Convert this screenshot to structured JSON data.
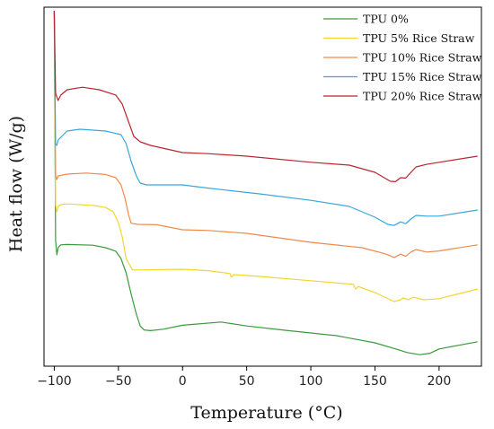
{
  "chart_data": {
    "type": "line",
    "title": "",
    "xlabel": "Temperature (°C)",
    "ylabel": "Heat flow (W/g)",
    "xlim": [
      -108,
      233
    ],
    "ylim": [
      0,
      1
    ],
    "y_ticks_shown": false,
    "grid": false,
    "legend_position": "top-right",
    "x_ticks": [
      {
        "value": -100,
        "label": "−100"
      },
      {
        "value": -50,
        "label": "−50"
      },
      {
        "value": 0,
        "label": "0"
      },
      {
        "value": 50,
        "label": "50"
      },
      {
        "value": 100,
        "label": "100"
      },
      {
        "value": 150,
        "label": "150"
      },
      {
        "value": 200,
        "label": "200"
      }
    ],
    "series": [
      {
        "name": "TPU 0%",
        "color": "#3b9a3b",
        "points": [
          [
            -100,
            0.99
          ],
          [
            -99,
            0.35
          ],
          [
            -98,
            0.31
          ],
          [
            -97,
            0.33
          ],
          [
            -95,
            0.338
          ],
          [
            -90,
            0.339
          ],
          [
            -70,
            0.337
          ],
          [
            -60,
            0.33
          ],
          [
            -52,
            0.32
          ],
          [
            -48,
            0.3
          ],
          [
            -44,
            0.26
          ],
          [
            -40,
            0.2
          ],
          [
            -36,
            0.145
          ],
          [
            -33,
            0.112
          ],
          [
            -30,
            0.101
          ],
          [
            -25,
            0.099
          ],
          [
            -15,
            0.103
          ],
          [
            0,
            0.114
          ],
          [
            30,
            0.123
          ],
          [
            50,
            0.112
          ],
          [
            80,
            0.1
          ],
          [
            120,
            0.085
          ],
          [
            150,
            0.065
          ],
          [
            168,
            0.046
          ],
          [
            175,
            0.038
          ],
          [
            185,
            0.032
          ],
          [
            193,
            0.036
          ],
          [
            200,
            0.048
          ],
          [
            215,
            0.058
          ],
          [
            230,
            0.068
          ]
        ]
      },
      {
        "name": "TPU 5% Rice Straw",
        "color": "#f2d630",
        "points": [
          [
            -100,
            0.99
          ],
          [
            -99,
            0.45
          ],
          [
            -98,
            0.43
          ],
          [
            -97,
            0.445
          ],
          [
            -95,
            0.45
          ],
          [
            -90,
            0.452
          ],
          [
            -70,
            0.448
          ],
          [
            -60,
            0.442
          ],
          [
            -54,
            0.43
          ],
          [
            -50,
            0.4
          ],
          [
            -47,
            0.36
          ],
          [
            -44,
            0.3
          ],
          [
            -41,
            0.28
          ],
          [
            -39,
            0.268
          ],
          [
            -35,
            0.268
          ],
          [
            0,
            0.27
          ],
          [
            20,
            0.266
          ],
          [
            37,
            0.258
          ],
          [
            38,
            0.248
          ],
          [
            40,
            0.255
          ],
          [
            60,
            0.25
          ],
          [
            100,
            0.238
          ],
          [
            133,
            0.228
          ],
          [
            135,
            0.215
          ],
          [
            137,
            0.222
          ],
          [
            150,
            0.205
          ],
          [
            165,
            0.18
          ],
          [
            170,
            0.185
          ],
          [
            172,
            0.19
          ],
          [
            176,
            0.185
          ],
          [
            180,
            0.192
          ],
          [
            188,
            0.185
          ],
          [
            200,
            0.188
          ],
          [
            230,
            0.215
          ]
        ]
      },
      {
        "name": "TPU 10% Rice Straw",
        "color": "#f0894a",
        "points": [
          [
            -100,
            0.99
          ],
          [
            -99,
            0.53
          ],
          [
            -98,
            0.52
          ],
          [
            -97,
            0.53
          ],
          [
            -90,
            0.535
          ],
          [
            -75,
            0.538
          ],
          [
            -60,
            0.534
          ],
          [
            -52,
            0.525
          ],
          [
            -48,
            0.505
          ],
          [
            -45,
            0.47
          ],
          [
            -42,
            0.42
          ],
          [
            -40,
            0.398
          ],
          [
            -35,
            0.395
          ],
          [
            -20,
            0.394
          ],
          [
            0,
            0.38
          ],
          [
            20,
            0.378
          ],
          [
            50,
            0.37
          ],
          [
            100,
            0.345
          ],
          [
            140,
            0.33
          ],
          [
            158,
            0.313
          ],
          [
            165,
            0.303
          ],
          [
            170,
            0.312
          ],
          [
            174,
            0.306
          ],
          [
            178,
            0.318
          ],
          [
            182,
            0.325
          ],
          [
            190,
            0.318
          ],
          [
            200,
            0.321
          ],
          [
            230,
            0.338
          ]
        ]
      },
      {
        "name": "TPU 15% Rice Straw",
        "color": "#3aa6db",
        "points": [
          [
            -100,
            0.99
          ],
          [
            -99,
            0.62
          ],
          [
            -98,
            0.615
          ],
          [
            -97,
            0.63
          ],
          [
            -90,
            0.655
          ],
          [
            -80,
            0.66
          ],
          [
            -60,
            0.655
          ],
          [
            -48,
            0.645
          ],
          [
            -44,
            0.62
          ],
          [
            -40,
            0.57
          ],
          [
            -36,
            0.53
          ],
          [
            -33,
            0.51
          ],
          [
            -28,
            0.505
          ],
          [
            -20,
            0.505
          ],
          [
            0,
            0.505
          ],
          [
            20,
            0.496
          ],
          [
            60,
            0.48
          ],
          [
            100,
            0.462
          ],
          [
            130,
            0.445
          ],
          [
            150,
            0.415
          ],
          [
            160,
            0.395
          ],
          [
            165,
            0.392
          ],
          [
            170,
            0.402
          ],
          [
            174,
            0.397
          ],
          [
            178,
            0.41
          ],
          [
            182,
            0.42
          ],
          [
            190,
            0.418
          ],
          [
            200,
            0.418
          ],
          [
            230,
            0.435
          ]
        ]
      },
      {
        "name": "TPU 20% Rice Straw",
        "color": "#b9262f",
        "points": [
          [
            -100,
            0.99
          ],
          [
            -99,
            0.76
          ],
          [
            -97,
            0.74
          ],
          [
            -95,
            0.755
          ],
          [
            -90,
            0.77
          ],
          [
            -78,
            0.777
          ],
          [
            -65,
            0.77
          ],
          [
            -52,
            0.755
          ],
          [
            -47,
            0.73
          ],
          [
            -43,
            0.69
          ],
          [
            -38,
            0.64
          ],
          [
            -33,
            0.625
          ],
          [
            -25,
            0.615
          ],
          [
            0,
            0.595
          ],
          [
            20,
            0.592
          ],
          [
            50,
            0.585
          ],
          [
            100,
            0.568
          ],
          [
            130,
            0.56
          ],
          [
            150,
            0.54
          ],
          [
            162,
            0.515
          ],
          [
            166,
            0.514
          ],
          [
            170,
            0.525
          ],
          [
            174,
            0.524
          ],
          [
            178,
            0.54
          ],
          [
            182,
            0.555
          ],
          [
            190,
            0.562
          ],
          [
            200,
            0.568
          ],
          [
            230,
            0.585
          ]
        ]
      }
    ]
  }
}
